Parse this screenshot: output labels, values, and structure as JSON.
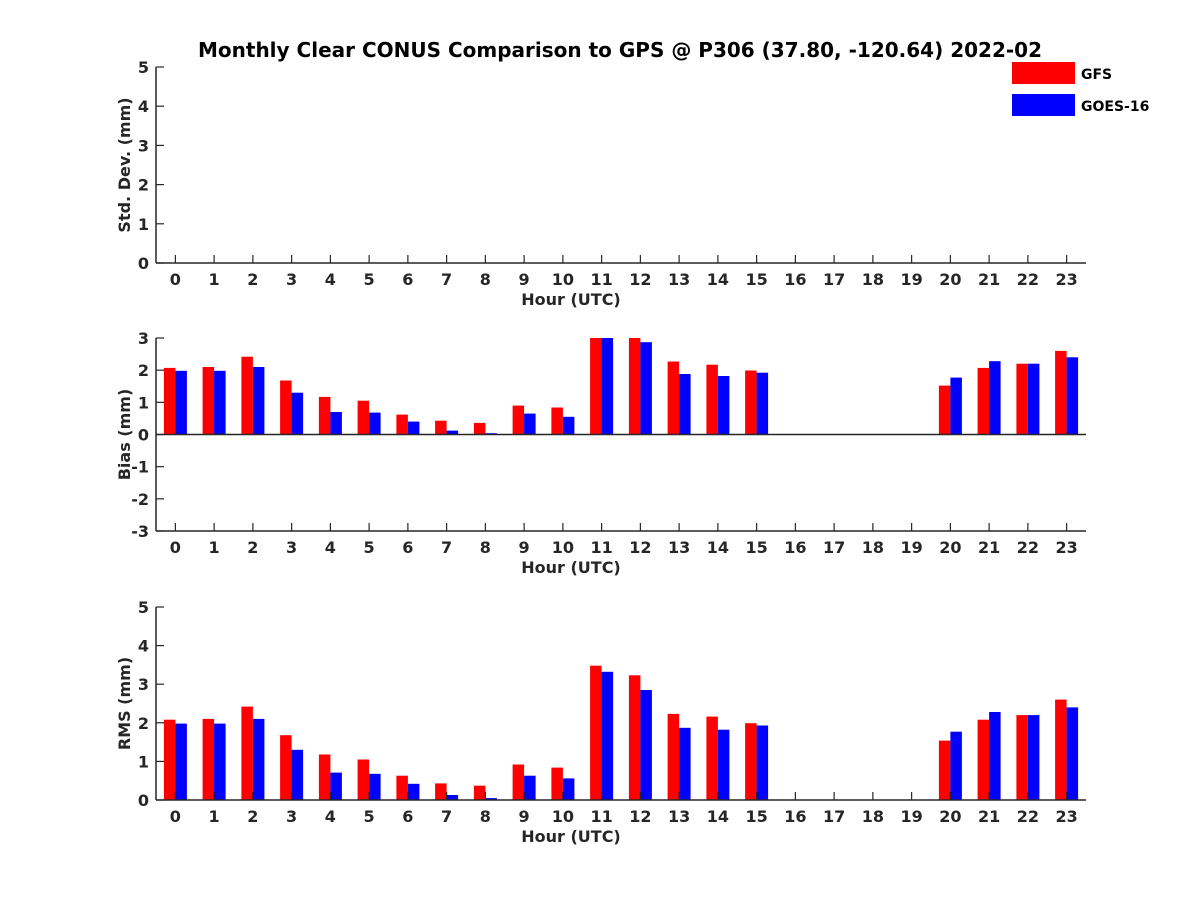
{
  "colors": {
    "gfs": "#ff0000",
    "goes": "#0000ff",
    "axis": "#262626"
  },
  "chart_data": {
    "title": "Monthly Clear CONUS Comparison to GPS @ P306 (37.80, -120.64) 2022-02",
    "legend": {
      "placement": "top-right",
      "entries": [
        "GFS",
        "GOES-16"
      ]
    },
    "panels": [
      {
        "id": "stddev",
        "type": "bar",
        "xlabel": "Hour (UTC)",
        "ylabel": "Std. Dev. (mm)",
        "ylim": [
          0,
          5
        ],
        "yticks": [
          0,
          1,
          2,
          3,
          4,
          5
        ],
        "ytick_labels": [
          "0",
          "1",
          "2",
          "3",
          "4",
          "5"
        ],
        "categories": [
          "0",
          "1",
          "2",
          "3",
          "4",
          "5",
          "6",
          "7",
          "8",
          "9",
          "10",
          "11",
          "12",
          "13",
          "14",
          "15",
          "16",
          "17",
          "18",
          "19",
          "20",
          "21",
          "22",
          "23"
        ],
        "series": [
          {
            "name": "GFS",
            "values": [
              null,
              null,
              null,
              null,
              null,
              null,
              null,
              null,
              null,
              null,
              null,
              null,
              null,
              null,
              null,
              null,
              null,
              null,
              null,
              null,
              null,
              null,
              null,
              null
            ]
          },
          {
            "name": "GOES-16",
            "values": [
              null,
              null,
              null,
              null,
              null,
              null,
              null,
              null,
              null,
              null,
              null,
              null,
              null,
              null,
              null,
              null,
              null,
              null,
              null,
              null,
              null,
              null,
              null,
              null
            ]
          }
        ]
      },
      {
        "id": "bias",
        "type": "bar",
        "xlabel": "Hour (UTC)",
        "ylabel": "Bias (mm)",
        "ylim": [
          -3,
          3
        ],
        "yticks": [
          -3,
          -2,
          -1,
          0,
          1,
          2,
          3
        ],
        "ytick_labels": [
          "-3",
          "-2",
          "-1",
          "0",
          "1",
          "2",
          "3"
        ],
        "categories": [
          "0",
          "1",
          "2",
          "3",
          "4",
          "5",
          "6",
          "7",
          "8",
          "9",
          "10",
          "11",
          "12",
          "13",
          "14",
          "15",
          "16",
          "17",
          "18",
          "19",
          "20",
          "21",
          "22",
          "23"
        ],
        "series": [
          {
            "name": "GFS",
            "values": [
              2.07,
              2.1,
              2.42,
              1.68,
              1.17,
              1.05,
              0.62,
              0.43,
              0.36,
              0.9,
              0.84,
              3.0,
              3.0,
              2.27,
              2.17,
              1.99,
              null,
              null,
              null,
              null,
              1.52,
              2.07,
              2.2,
              2.6
            ]
          },
          {
            "name": "GOES-16",
            "values": [
              1.98,
              1.98,
              2.1,
              1.3,
              0.7,
              0.68,
              0.4,
              0.12,
              0.04,
              0.65,
              0.55,
              3.0,
              2.87,
              1.88,
              1.82,
              1.92,
              null,
              null,
              null,
              null,
              1.77,
              2.28,
              2.2,
              2.4
            ]
          }
        ]
      },
      {
        "id": "rms",
        "type": "bar",
        "xlabel": "Hour (UTC)",
        "ylabel": "RMS (mm)",
        "ylim": [
          0,
          5
        ],
        "yticks": [
          0,
          1,
          2,
          3,
          4,
          5
        ],
        "ytick_labels": [
          "0",
          "1",
          "2",
          "3",
          "4",
          "5"
        ],
        "categories": [
          "0",
          "1",
          "2",
          "3",
          "4",
          "5",
          "6",
          "7",
          "8",
          "9",
          "10",
          "11",
          "12",
          "13",
          "14",
          "15",
          "16",
          "17",
          "18",
          "19",
          "20",
          "21",
          "22",
          "23"
        ],
        "series": [
          {
            "name": "GFS",
            "values": [
              2.08,
              2.1,
              2.42,
              1.68,
              1.18,
              1.05,
              0.63,
              0.43,
              0.37,
              0.92,
              0.84,
              3.48,
              3.23,
              2.23,
              2.16,
              1.99,
              null,
              null,
              null,
              null,
              1.54,
              2.08,
              2.2,
              2.6
            ]
          },
          {
            "name": "GOES-16",
            "values": [
              1.98,
              1.98,
              2.1,
              1.3,
              0.71,
              0.68,
              0.42,
              0.13,
              0.05,
              0.63,
              0.56,
              3.32,
              2.85,
              1.87,
              1.82,
              1.93,
              null,
              null,
              null,
              null,
              1.77,
              2.28,
              2.2,
              2.4
            ]
          }
        ]
      }
    ]
  }
}
